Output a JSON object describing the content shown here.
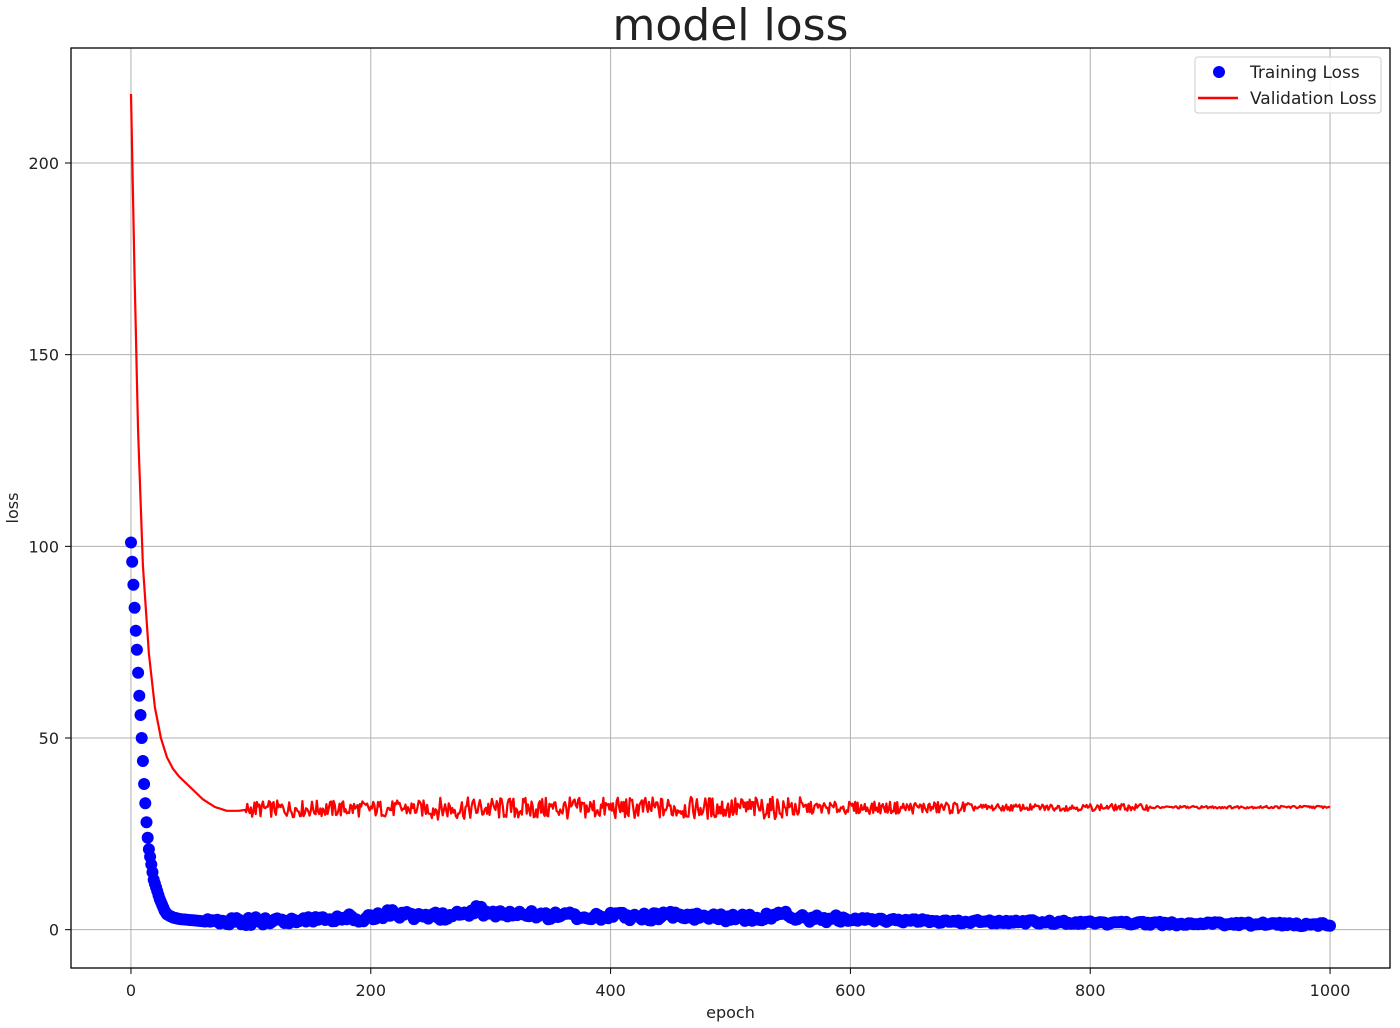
{
  "chart_data": {
    "type": "line",
    "title": "model loss",
    "xlabel": "epoch",
    "ylabel": "loss",
    "xlim": [
      -50,
      1050
    ],
    "ylim": [
      -10,
      230
    ],
    "x_ticks": [
      0,
      200,
      400,
      600,
      800,
      1000
    ],
    "y_ticks": [
      0,
      50,
      100,
      150,
      200
    ],
    "grid": true,
    "legend_position": "top-right",
    "series": [
      {
        "name": "Training Loss",
        "style": "markers",
        "color": "#0000ff",
        "x": [
          0,
          1,
          2,
          3,
          4,
          5,
          6,
          7,
          8,
          9,
          10,
          11,
          12,
          13,
          14,
          15,
          16,
          17,
          18,
          19,
          20,
          22,
          24,
          26,
          28,
          30,
          35,
          40,
          50,
          60,
          70,
          80,
          100,
          120,
          140,
          160,
          180,
          200,
          215,
          240,
          260,
          280,
          288,
          300,
          320,
          330,
          350,
          380,
          400,
          420,
          440,
          455,
          480,
          500,
          520,
          545,
          560,
          580,
          600,
          620,
          650,
          700,
          750,
          800,
          850,
          900,
          950,
          1000
        ],
        "values": [
          101,
          96,
          90,
          84,
          78,
          73,
          67,
          61,
          56,
          50,
          44,
          38,
          33,
          28,
          24,
          21,
          19,
          17,
          15,
          13,
          12,
          10,
          8,
          6.5,
          5,
          4,
          3.2,
          2.8,
          2.5,
          2.2,
          2.0,
          2.0,
          2.2,
          2.4,
          2.6,
          2.8,
          3.0,
          3.2,
          4.2,
          3.5,
          3.6,
          3.8,
          5.5,
          3.8,
          4.0,
          4.5,
          3.6,
          3.5,
          3.6,
          3.4,
          3.3,
          4.0,
          3.2,
          3.0,
          3.0,
          4.2,
          3.0,
          2.8,
          2.7,
          2.5,
          2.3,
          2.1,
          2.0,
          1.8,
          1.6,
          1.5,
          1.4,
          1.3
        ]
      },
      {
        "name": "Validation Loss",
        "style": "line",
        "color": "#ff0000",
        "x": [
          0,
          3,
          6,
          10,
          15,
          20,
          25,
          30,
          35,
          40,
          50,
          60,
          70,
          80,
          90,
          100,
          1000
        ],
        "values": [
          218,
          170,
          130,
          95,
          72,
          58,
          50,
          45,
          42,
          40,
          37,
          34,
          32,
          31,
          31,
          31.5,
          32
        ]
      }
    ]
  }
}
